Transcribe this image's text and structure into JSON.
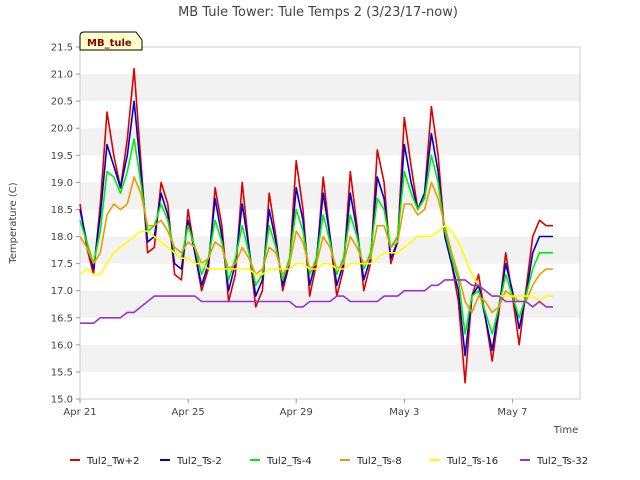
{
  "chart_data": {
    "type": "line",
    "title": "MB Tule Tower: Tule Temps 2 (3/23/17-now)",
    "xlabel": "Time",
    "ylabel": "Temperature (C)",
    "badge": "MB_tule",
    "ylim": [
      15.0,
      21.5
    ],
    "yticks": [
      15.0,
      15.5,
      16.0,
      16.5,
      17.0,
      17.5,
      18.0,
      18.5,
      19.0,
      19.5,
      20.0,
      20.5,
      21.0,
      21.5
    ],
    "ytick_labels": [
      "15.0",
      "15.5",
      "16.0",
      "16.5",
      "17.0",
      "17.5",
      "18.0",
      "18.5",
      "19.0",
      "19.5",
      "20.0",
      "20.5",
      "21.0",
      "21.5"
    ],
    "xlim": [
      0,
      18.5
    ],
    "xticks": [
      0,
      4,
      8,
      12,
      16
    ],
    "xtick_labels": [
      "Apr 21",
      "Apr 25",
      "Apr 29",
      "May 3",
      "May 7"
    ],
    "grid": "horizontal-bands",
    "legend_position": "bottom",
    "series": [
      {
        "name": "Tul2_Tw+2",
        "color": "#dd0000",
        "x": [
          0.0,
          0.25,
          0.5,
          0.75,
          1.0,
          1.25,
          1.5,
          1.75,
          2.0,
          2.25,
          2.5,
          2.75,
          3.0,
          3.25,
          3.5,
          3.75,
          4.0,
          4.25,
          4.5,
          4.75,
          5.0,
          5.25,
          5.5,
          5.75,
          6.0,
          6.25,
          6.5,
          6.75,
          7.0,
          7.25,
          7.5,
          7.75,
          8.0,
          8.25,
          8.5,
          8.75,
          9.0,
          9.25,
          9.5,
          9.75,
          10.0,
          10.25,
          10.5,
          10.75,
          11.0,
          11.25,
          11.5,
          11.75,
          12.0,
          12.25,
          12.5,
          12.75,
          13.0,
          13.25,
          13.5,
          13.75,
          14.0,
          14.25,
          14.5,
          14.75,
          15.0,
          15.25,
          15.5,
          15.75,
          16.0,
          16.25,
          16.5,
          16.75,
          17.0,
          17.25,
          17.5
        ],
        "y": [
          18.6,
          17.8,
          17.3,
          18.6,
          20.3,
          19.5,
          18.9,
          19.8,
          21.1,
          19.4,
          17.7,
          17.8,
          19.0,
          18.6,
          17.3,
          17.2,
          18.5,
          17.7,
          17.0,
          17.4,
          18.9,
          18.2,
          16.8,
          17.3,
          19.0,
          17.8,
          16.7,
          17.0,
          18.8,
          18.0,
          17.0,
          17.5,
          19.4,
          18.5,
          16.9,
          17.5,
          19.1,
          18.0,
          16.9,
          17.4,
          19.2,
          18.2,
          17.0,
          17.5,
          19.6,
          19.0,
          17.5,
          17.9,
          20.2,
          19.3,
          18.5,
          18.8,
          20.4,
          19.5,
          18.0,
          17.5,
          16.8,
          15.3,
          16.9,
          17.3,
          16.5,
          15.7,
          16.6,
          17.7,
          16.9,
          16.0,
          17.0,
          18.0,
          18.3,
          18.2,
          18.2
        ]
      },
      {
        "name": "Tul2_Ts-2",
        "color": "#0000cc",
        "x": [
          0.0,
          0.25,
          0.5,
          0.75,
          1.0,
          1.25,
          1.5,
          1.75,
          2.0,
          2.25,
          2.5,
          2.75,
          3.0,
          3.25,
          3.5,
          3.75,
          4.0,
          4.25,
          4.5,
          4.75,
          5.0,
          5.25,
          5.5,
          5.75,
          6.0,
          6.25,
          6.5,
          6.75,
          7.0,
          7.25,
          7.5,
          7.75,
          8.0,
          8.25,
          8.5,
          8.75,
          9.0,
          9.25,
          9.5,
          9.75,
          10.0,
          10.25,
          10.5,
          10.75,
          11.0,
          11.25,
          11.5,
          11.75,
          12.0,
          12.25,
          12.5,
          12.75,
          13.0,
          13.25,
          13.5,
          13.75,
          14.0,
          14.25,
          14.5,
          14.75,
          15.0,
          15.25,
          15.5,
          15.75,
          16.0,
          16.25,
          16.5,
          16.75,
          17.0,
          17.25,
          17.5
        ],
        "y": [
          18.5,
          17.9,
          17.4,
          18.4,
          19.7,
          19.3,
          18.9,
          19.5,
          20.5,
          19.2,
          17.9,
          18.0,
          18.8,
          18.4,
          17.5,
          17.4,
          18.3,
          17.7,
          17.1,
          17.5,
          18.7,
          18.0,
          17.0,
          17.5,
          18.6,
          17.8,
          16.9,
          17.2,
          18.5,
          17.9,
          17.1,
          17.5,
          18.9,
          18.3,
          17.1,
          17.6,
          18.8,
          18.0,
          17.1,
          17.5,
          18.8,
          18.1,
          17.2,
          17.6,
          19.1,
          18.7,
          17.6,
          17.9,
          19.7,
          19.0,
          18.5,
          18.8,
          19.9,
          19.2,
          18.0,
          17.5,
          17.0,
          15.8,
          16.9,
          17.1,
          16.5,
          15.9,
          16.7,
          17.5,
          17.0,
          16.3,
          16.9,
          17.7,
          18.0,
          18.0,
          18.0
        ]
      },
      {
        "name": "Tul2_Ts-4",
        "color": "#00ee00",
        "x": [
          0.0,
          0.25,
          0.5,
          0.75,
          1.0,
          1.25,
          1.5,
          1.75,
          2.0,
          2.25,
          2.5,
          2.75,
          3.0,
          3.25,
          3.5,
          3.75,
          4.0,
          4.25,
          4.5,
          4.75,
          5.0,
          5.25,
          5.5,
          5.75,
          6.0,
          6.25,
          6.5,
          6.75,
          7.0,
          7.25,
          7.5,
          7.75,
          8.0,
          8.25,
          8.5,
          8.75,
          9.0,
          9.25,
          9.5,
          9.75,
          10.0,
          10.25,
          10.5,
          10.75,
          11.0,
          11.25,
          11.5,
          11.75,
          12.0,
          12.25,
          12.5,
          12.75,
          13.0,
          13.25,
          13.5,
          13.75,
          14.0,
          14.25,
          14.5,
          14.75,
          15.0,
          15.25,
          15.5,
          15.75,
          16.0,
          16.25,
          16.5,
          16.75,
          17.0,
          17.25,
          17.5
        ],
        "y": [
          18.3,
          17.9,
          17.5,
          18.1,
          19.2,
          19.1,
          18.8,
          19.2,
          19.8,
          19.0,
          18.1,
          18.2,
          18.6,
          18.3,
          17.7,
          17.6,
          18.2,
          17.8,
          17.3,
          17.6,
          18.3,
          17.9,
          17.2,
          17.6,
          18.2,
          17.7,
          17.1,
          17.3,
          18.2,
          17.8,
          17.2,
          17.6,
          18.5,
          18.1,
          17.3,
          17.6,
          18.4,
          17.9,
          17.3,
          17.6,
          18.4,
          18.0,
          17.4,
          17.7,
          18.7,
          18.5,
          17.8,
          18.0,
          19.2,
          18.8,
          18.5,
          18.7,
          19.5,
          19.0,
          18.1,
          17.6,
          17.2,
          16.2,
          16.9,
          17.0,
          16.6,
          16.2,
          16.7,
          17.3,
          16.9,
          16.5,
          16.9,
          17.4,
          17.7,
          17.7,
          17.7
        ]
      },
      {
        "name": "Tul2_Ts-8",
        "color": "#ee9900",
        "x": [
          0.0,
          0.25,
          0.5,
          0.75,
          1.0,
          1.25,
          1.5,
          1.75,
          2.0,
          2.25,
          2.5,
          2.75,
          3.0,
          3.25,
          3.5,
          3.75,
          4.0,
          4.25,
          4.5,
          4.75,
          5.0,
          5.25,
          5.5,
          5.75,
          6.0,
          6.25,
          6.5,
          6.75,
          7.0,
          7.25,
          7.5,
          7.75,
          8.0,
          8.25,
          8.5,
          8.75,
          9.0,
          9.25,
          9.5,
          9.75,
          10.0,
          10.25,
          10.5,
          10.75,
          11.0,
          11.25,
          11.5,
          11.75,
          12.0,
          12.25,
          12.5,
          12.75,
          13.0,
          13.25,
          13.5,
          13.75,
          14.0,
          14.25,
          14.5,
          14.75,
          15.0,
          15.25,
          15.5,
          15.75,
          16.0,
          16.25,
          16.5,
          16.75,
          17.0,
          17.25,
          17.5
        ],
        "y": [
          18.0,
          17.8,
          17.5,
          17.7,
          18.4,
          18.6,
          18.5,
          18.6,
          19.1,
          18.8,
          18.2,
          18.2,
          18.3,
          18.1,
          17.8,
          17.7,
          17.9,
          17.8,
          17.5,
          17.6,
          17.9,
          17.8,
          17.4,
          17.5,
          17.8,
          17.6,
          17.3,
          17.4,
          17.8,
          17.7,
          17.3,
          17.5,
          18.1,
          17.9,
          17.4,
          17.5,
          18.0,
          17.8,
          17.4,
          17.5,
          18.0,
          17.8,
          17.5,
          17.6,
          18.2,
          18.2,
          17.8,
          17.9,
          18.6,
          18.6,
          18.4,
          18.5,
          19.0,
          18.7,
          18.2,
          17.7,
          17.3,
          16.8,
          16.6,
          16.9,
          16.8,
          16.6,
          16.7,
          17.0,
          16.9,
          16.8,
          16.8,
          17.1,
          17.3,
          17.4,
          17.4
        ]
      },
      {
        "name": "Tul2_Ts-16",
        "color": "#ffff00",
        "x": [
          0.0,
          0.25,
          0.5,
          0.75,
          1.0,
          1.25,
          1.5,
          1.75,
          2.0,
          2.25,
          2.5,
          2.75,
          3.0,
          3.25,
          3.5,
          3.75,
          4.0,
          4.25,
          4.5,
          4.75,
          5.0,
          5.25,
          5.5,
          5.75,
          6.0,
          6.25,
          6.5,
          6.75,
          7.0,
          7.25,
          7.5,
          7.75,
          8.0,
          8.25,
          8.5,
          8.75,
          9.0,
          9.25,
          9.5,
          9.75,
          10.0,
          10.25,
          10.5,
          10.75,
          11.0,
          11.25,
          11.5,
          11.75,
          12.0,
          12.25,
          12.5,
          12.75,
          13.0,
          13.25,
          13.5,
          13.75,
          14.0,
          14.25,
          14.5,
          14.75,
          15.0,
          15.25,
          15.5,
          15.75,
          16.0,
          16.25,
          16.5,
          16.75,
          17.0,
          17.25,
          17.5
        ],
        "y": [
          17.3,
          17.4,
          17.3,
          17.3,
          17.5,
          17.7,
          17.8,
          17.9,
          18.0,
          18.1,
          18.1,
          18.0,
          17.9,
          17.8,
          17.7,
          17.6,
          17.6,
          17.5,
          17.5,
          17.4,
          17.4,
          17.4,
          17.4,
          17.4,
          17.4,
          17.4,
          17.3,
          17.3,
          17.4,
          17.4,
          17.4,
          17.4,
          17.5,
          17.5,
          17.4,
          17.4,
          17.5,
          17.5,
          17.4,
          17.4,
          17.5,
          17.5,
          17.5,
          17.5,
          17.6,
          17.7,
          17.7,
          17.7,
          17.8,
          17.9,
          18.0,
          18.0,
          18.0,
          18.1,
          18.2,
          18.1,
          17.9,
          17.6,
          17.3,
          17.1,
          17.0,
          16.9,
          16.9,
          16.9,
          16.9,
          16.9,
          16.9,
          16.9,
          16.8,
          16.9,
          16.9
        ]
      },
      {
        "name": "Tul2_Ts-32",
        "color": "#9933cc",
        "x": [
          0.0,
          0.25,
          0.5,
          0.75,
          1.0,
          1.25,
          1.5,
          1.75,
          2.0,
          2.25,
          2.5,
          2.75,
          3.0,
          3.25,
          3.5,
          3.75,
          4.0,
          4.25,
          4.5,
          4.75,
          5.0,
          5.25,
          5.5,
          5.75,
          6.0,
          6.25,
          6.5,
          6.75,
          7.0,
          7.25,
          7.5,
          7.75,
          8.0,
          8.25,
          8.5,
          8.75,
          9.0,
          9.25,
          9.5,
          9.75,
          10.0,
          10.25,
          10.5,
          10.75,
          11.0,
          11.25,
          11.5,
          11.75,
          12.0,
          12.25,
          12.5,
          12.75,
          13.0,
          13.25,
          13.5,
          13.75,
          14.0,
          14.25,
          14.5,
          14.75,
          15.0,
          15.25,
          15.5,
          15.75,
          16.0,
          16.25,
          16.5,
          16.75,
          17.0,
          17.25,
          17.5
        ],
        "y": [
          16.4,
          16.4,
          16.4,
          16.5,
          16.5,
          16.5,
          16.5,
          16.6,
          16.6,
          16.7,
          16.8,
          16.9,
          16.9,
          16.9,
          16.9,
          16.9,
          16.9,
          16.9,
          16.8,
          16.8,
          16.8,
          16.8,
          16.8,
          16.8,
          16.8,
          16.8,
          16.8,
          16.8,
          16.8,
          16.8,
          16.8,
          16.8,
          16.7,
          16.7,
          16.8,
          16.8,
          16.8,
          16.8,
          16.9,
          16.9,
          16.8,
          16.8,
          16.8,
          16.8,
          16.8,
          16.9,
          16.9,
          16.9,
          17.0,
          17.0,
          17.0,
          17.0,
          17.1,
          17.1,
          17.2,
          17.2,
          17.2,
          17.2,
          17.1,
          17.1,
          17.0,
          16.9,
          16.9,
          16.8,
          16.8,
          16.8,
          16.8,
          16.7,
          16.8,
          16.7,
          16.7
        ]
      }
    ]
  }
}
